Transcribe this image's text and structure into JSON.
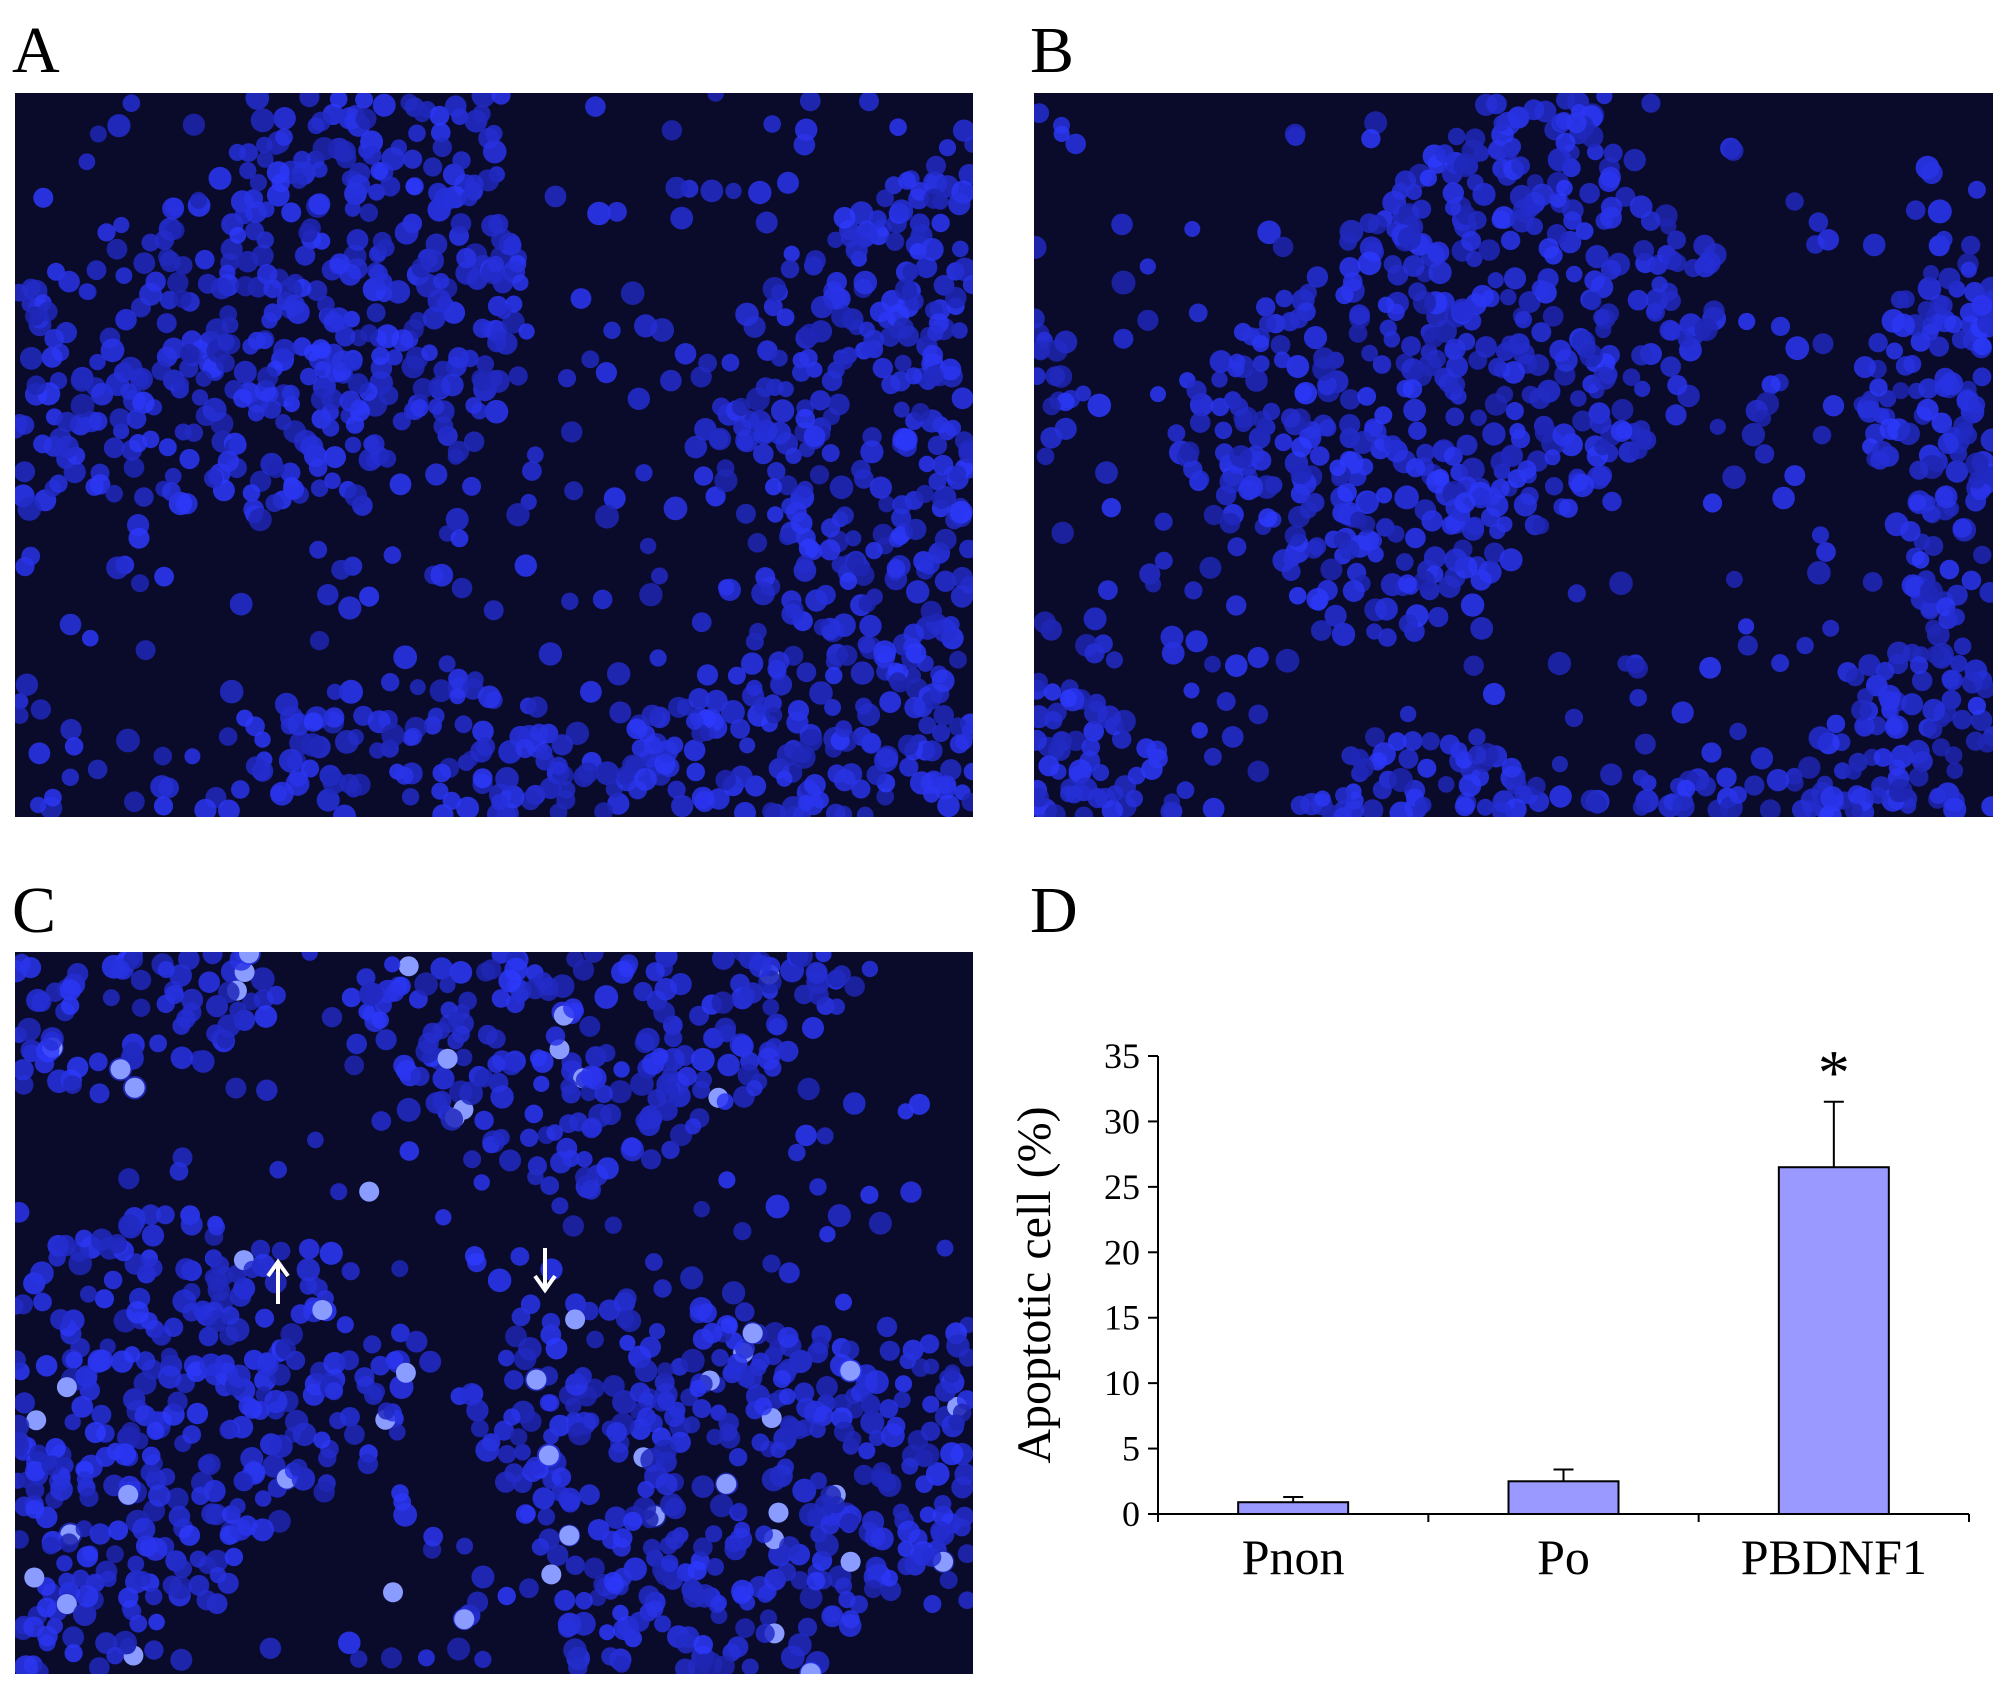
{
  "panels": [
    "A",
    "B",
    "C",
    "D"
  ],
  "chart_data": {
    "type": "bar",
    "ylabel": "Apoptotic cell (%)",
    "categories": [
      "Pnon",
      "Po",
      "PBDNF1"
    ],
    "values": [
      0.9,
      2.5,
      26.5
    ],
    "errors": [
      0.4,
      0.9,
      5.0
    ],
    "color": "#9999ff",
    "ylim": [
      0,
      35
    ],
    "yticks": [
      0,
      5,
      10,
      15,
      20,
      25,
      30,
      35
    ],
    "annotation": "*"
  }
}
